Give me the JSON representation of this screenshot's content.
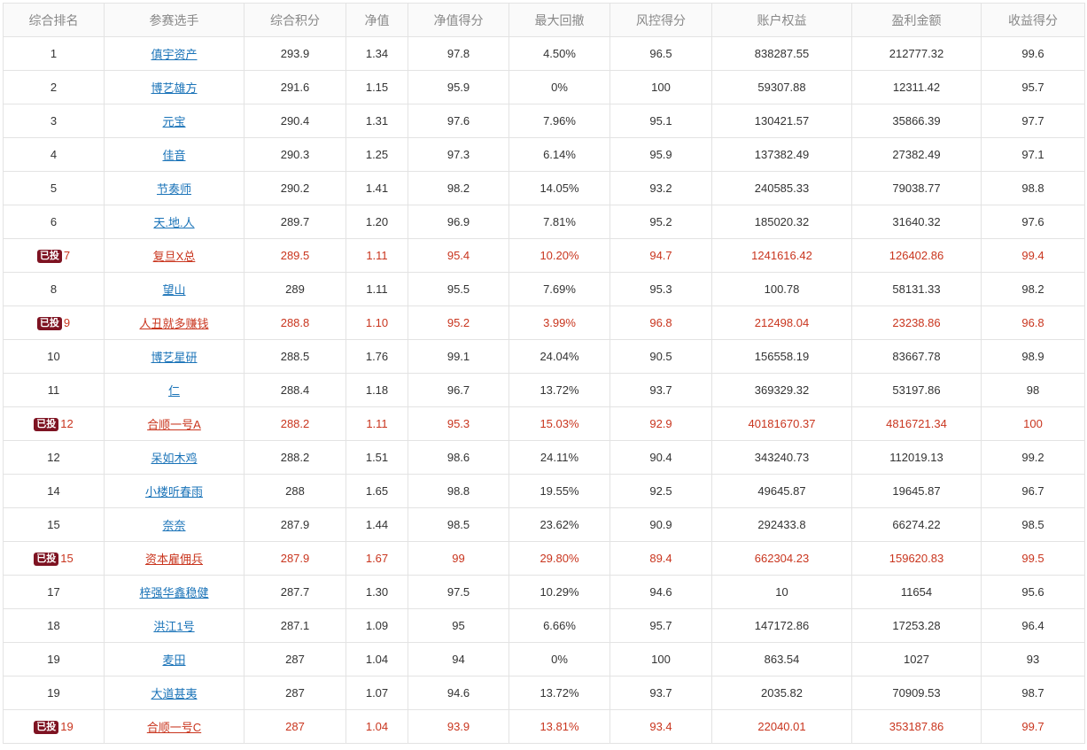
{
  "headers": [
    "综合排名",
    "参赛选手",
    "综合积分",
    "净值",
    "净值得分",
    "最大回撤",
    "风控得分",
    "账户权益",
    "盈利金额",
    "收益得分"
  ],
  "rows": [
    {
      "badge": "",
      "rank": "1",
      "player": "傎宇资产",
      "score": "293.9",
      "nav": "1.34",
      "nav_score": "97.8",
      "drawdown": "4.50%",
      "risk_score": "96.5",
      "equity": "838287.55",
      "profit": "212777.32",
      "return_score": "99.6"
    },
    {
      "badge": "",
      "rank": "2",
      "player": "博艺雄方",
      "score": "291.6",
      "nav": "1.15",
      "nav_score": "95.9",
      "drawdown": "0%",
      "risk_score": "100",
      "equity": "59307.88",
      "profit": "12311.42",
      "return_score": "95.7"
    },
    {
      "badge": "",
      "rank": "3",
      "player": "元宝",
      "score": "290.4",
      "nav": "1.31",
      "nav_score": "97.6",
      "drawdown": "7.96%",
      "risk_score": "95.1",
      "equity": "130421.57",
      "profit": "35866.39",
      "return_score": "97.7"
    },
    {
      "badge": "",
      "rank": "4",
      "player": "佳音",
      "score": "290.3",
      "nav": "1.25",
      "nav_score": "97.3",
      "drawdown": "6.14%",
      "risk_score": "95.9",
      "equity": "137382.49",
      "profit": "27382.49",
      "return_score": "97.1"
    },
    {
      "badge": "",
      "rank": "5",
      "player": "节奏师",
      "score": "290.2",
      "nav": "1.41",
      "nav_score": "98.2",
      "drawdown": "14.05%",
      "risk_score": "93.2",
      "equity": "240585.33",
      "profit": "79038.77",
      "return_score": "98.8"
    },
    {
      "badge": "",
      "rank": "6",
      "player": "天.地.人",
      "score": "289.7",
      "nav": "1.20",
      "nav_score": "96.9",
      "drawdown": "7.81%",
      "risk_score": "95.2",
      "equity": "185020.32",
      "profit": "31640.32",
      "return_score": "97.6"
    },
    {
      "badge": "已投",
      "rank": "7",
      "player": "复旦X总",
      "score": "289.5",
      "nav": "1.11",
      "nav_score": "95.4",
      "drawdown": "10.20%",
      "risk_score": "94.7",
      "equity": "1241616.42",
      "profit": "126402.86",
      "return_score": "99.4"
    },
    {
      "badge": "",
      "rank": "8",
      "player": "望山",
      "score": "289",
      "nav": "1.11",
      "nav_score": "95.5",
      "drawdown": "7.69%",
      "risk_score": "95.3",
      "equity": "100.78",
      "profit": "58131.33",
      "return_score": "98.2"
    },
    {
      "badge": "已投",
      "rank": "9",
      "player": "人丑就多赚钱",
      "score": "288.8",
      "nav": "1.10",
      "nav_score": "95.2",
      "drawdown": "3.99%",
      "risk_score": "96.8",
      "equity": "212498.04",
      "profit": "23238.86",
      "return_score": "96.8"
    },
    {
      "badge": "",
      "rank": "10",
      "player": "博艺星研",
      "score": "288.5",
      "nav": "1.76",
      "nav_score": "99.1",
      "drawdown": "24.04%",
      "risk_score": "90.5",
      "equity": "156558.19",
      "profit": "83667.78",
      "return_score": "98.9"
    },
    {
      "badge": "",
      "rank": "11",
      "player": "仁",
      "score": "288.4",
      "nav": "1.18",
      "nav_score": "96.7",
      "drawdown": "13.72%",
      "risk_score": "93.7",
      "equity": "369329.32",
      "profit": "53197.86",
      "return_score": "98"
    },
    {
      "badge": "已投",
      "rank": "12",
      "player": "合顺一号A",
      "score": "288.2",
      "nav": "1.11",
      "nav_score": "95.3",
      "drawdown": "15.03%",
      "risk_score": "92.9",
      "equity": "40181670.37",
      "profit": "4816721.34",
      "return_score": "100"
    },
    {
      "badge": "",
      "rank": "12",
      "player": "呆如木鸡",
      "score": "288.2",
      "nav": "1.51",
      "nav_score": "98.6",
      "drawdown": "24.11%",
      "risk_score": "90.4",
      "equity": "343240.73",
      "profit": "112019.13",
      "return_score": "99.2"
    },
    {
      "badge": "",
      "rank": "14",
      "player": "小楼听春雨",
      "score": "288",
      "nav": "1.65",
      "nav_score": "98.8",
      "drawdown": "19.55%",
      "risk_score": "92.5",
      "equity": "49645.87",
      "profit": "19645.87",
      "return_score": "96.7"
    },
    {
      "badge": "",
      "rank": "15",
      "player": "奈奈",
      "score": "287.9",
      "nav": "1.44",
      "nav_score": "98.5",
      "drawdown": "23.62%",
      "risk_score": "90.9",
      "equity": "292433.8",
      "profit": "66274.22",
      "return_score": "98.5"
    },
    {
      "badge": "已投",
      "rank": "15",
      "player": "资本雇佣兵",
      "score": "287.9",
      "nav": "1.67",
      "nav_score": "99",
      "drawdown": "29.80%",
      "risk_score": "89.4",
      "equity": "662304.23",
      "profit": "159620.83",
      "return_score": "99.5"
    },
    {
      "badge": "",
      "rank": "17",
      "player": "梓强华鑫稳健",
      "score": "287.7",
      "nav": "1.30",
      "nav_score": "97.5",
      "drawdown": "10.29%",
      "risk_score": "94.6",
      "equity": "10",
      "profit": "11654",
      "return_score": "95.6"
    },
    {
      "badge": "",
      "rank": "18",
      "player": "洪江1号",
      "score": "287.1",
      "nav": "1.09",
      "nav_score": "95",
      "drawdown": "6.66%",
      "risk_score": "95.7",
      "equity": "147172.86",
      "profit": "17253.28",
      "return_score": "96.4"
    },
    {
      "badge": "",
      "rank": "19",
      "player": "麦田",
      "score": "287",
      "nav": "1.04",
      "nav_score": "94",
      "drawdown": "0%",
      "risk_score": "100",
      "equity": "863.54",
      "profit": "1027",
      "return_score": "93"
    },
    {
      "badge": "",
      "rank": "19",
      "player": "大道甚夷",
      "score": "287",
      "nav": "1.07",
      "nav_score": "94.6",
      "drawdown": "13.72%",
      "risk_score": "93.7",
      "equity": "2035.82",
      "profit": "70909.53",
      "return_score": "98.7"
    },
    {
      "badge": "已投",
      "rank": "19",
      "player": "合顺一号C",
      "score": "287",
      "nav": "1.04",
      "nav_score": "93.9",
      "drawdown": "13.81%",
      "risk_score": "93.4",
      "equity": "22040.01",
      "profit": "353187.86",
      "return_score": "99.7"
    }
  ]
}
